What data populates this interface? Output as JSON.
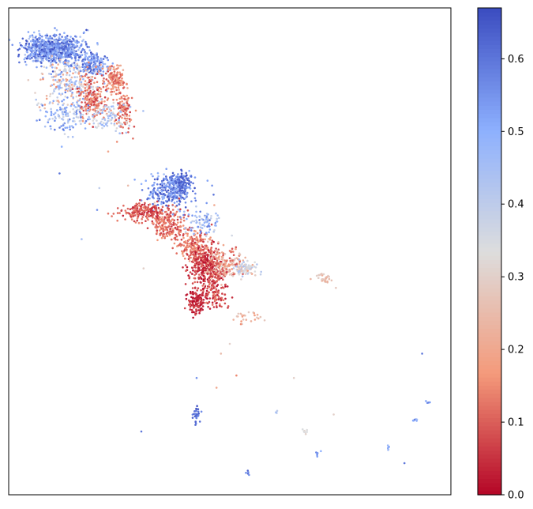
{
  "chart_data": {
    "type": "scatter",
    "title": "",
    "xlabel": "",
    "ylabel": "",
    "x_ticks_visible": false,
    "y_ticks_visible": false,
    "xlim": [
      0,
      100
    ],
    "ylim": [
      0,
      100
    ],
    "colormap": "coolwarm_r",
    "colorbar": {
      "min": 0.0,
      "max": 0.67,
      "ticks": [
        0.0,
        0.1,
        0.2,
        0.3,
        0.4,
        0.5,
        0.6
      ],
      "tick_labels": [
        "0.0",
        "0.1",
        "0.2",
        "0.3",
        "0.4",
        "0.5",
        "0.6"
      ],
      "placement": "right"
    },
    "clusters": [
      {
        "x": 10,
        "y": 91.5,
        "sx": 3.2,
        "sy": 1.4,
        "n": 900,
        "cmin": 0.42,
        "cmax": 0.67
      },
      {
        "x": 19,
        "y": 88.5,
        "sx": 1.6,
        "sy": 1.2,
        "n": 180,
        "cmin": 0.45,
        "cmax": 0.67
      },
      {
        "x": 14,
        "y": 84.5,
        "sx": 3.5,
        "sy": 2.6,
        "n": 260,
        "cmin": 0.15,
        "cmax": 0.55
      },
      {
        "x": 19,
        "y": 81.5,
        "sx": 1.6,
        "sy": 2.2,
        "n": 200,
        "cmin": 0.05,
        "cmax": 0.2
      },
      {
        "x": 24,
        "y": 85.5,
        "sx": 1.2,
        "sy": 1.3,
        "n": 140,
        "cmin": 0.08,
        "cmax": 0.22
      },
      {
        "x": 26,
        "y": 79,
        "sx": 0.9,
        "sy": 2.3,
        "n": 110,
        "cmin": 0.05,
        "cmax": 0.2
      },
      {
        "x": 13,
        "y": 78,
        "sx": 2.8,
        "sy": 1.8,
        "n": 130,
        "cmin": 0.35,
        "cmax": 0.6
      },
      {
        "x": 23,
        "y": 77.5,
        "sx": 2.8,
        "sy": 1.5,
        "n": 90,
        "cmin": 0.3,
        "cmax": 0.5
      },
      {
        "x": 36.5,
        "y": 62.5,
        "sx": 2.6,
        "sy": 1.6,
        "n": 280,
        "cmin": 0.45,
        "cmax": 0.67
      },
      {
        "x": 39,
        "y": 64.5,
        "sx": 1.2,
        "sy": 0.8,
        "n": 90,
        "cmin": 0.55,
        "cmax": 0.67
      },
      {
        "x": 31,
        "y": 58,
        "sx": 3.3,
        "sy": 1.0,
        "n": 220,
        "cmin": 0.03,
        "cmax": 0.15
      },
      {
        "x": 36,
        "y": 55,
        "sx": 2.0,
        "sy": 1.4,
        "n": 160,
        "cmin": 0.05,
        "cmax": 0.18
      },
      {
        "x": 42,
        "y": 51,
        "sx": 2.0,
        "sy": 1.6,
        "n": 220,
        "cmin": 0.05,
        "cmax": 0.2
      },
      {
        "x": 45,
        "y": 46.5,
        "sx": 1.8,
        "sy": 2.0,
        "n": 360,
        "cmin": 0.0,
        "cmax": 0.12
      },
      {
        "x": 49,
        "y": 47.5,
        "sx": 2.2,
        "sy": 1.5,
        "n": 180,
        "cmin": 0.08,
        "cmax": 0.3
      },
      {
        "x": 53.5,
        "y": 46.5,
        "sx": 1.5,
        "sy": 0.8,
        "n": 80,
        "cmin": 0.25,
        "cmax": 0.45
      },
      {
        "x": 42.5,
        "y": 40,
        "sx": 1.0,
        "sy": 1.2,
        "n": 130,
        "cmin": 0.0,
        "cmax": 0.08
      },
      {
        "x": 47,
        "y": 40.5,
        "sx": 1.2,
        "sy": 1.4,
        "n": 80,
        "cmin": 0.02,
        "cmax": 0.15
      },
      {
        "x": 44,
        "y": 56,
        "sx": 2.4,
        "sy": 1.2,
        "n": 80,
        "cmin": 0.35,
        "cmax": 0.6
      },
      {
        "x": 54,
        "y": 36.5,
        "sx": 1.5,
        "sy": 0.6,
        "n": 25,
        "cmin": 0.15,
        "cmax": 0.3
      },
      {
        "x": 71.5,
        "y": 44.5,
        "sx": 0.9,
        "sy": 0.6,
        "n": 30,
        "cmin": 0.22,
        "cmax": 0.3
      },
      {
        "x": 42.5,
        "y": 16.5,
        "sx": 0.4,
        "sy": 0.9,
        "n": 30,
        "cmin": 0.55,
        "cmax": 0.67
      },
      {
        "x": 67,
        "y": 13,
        "sx": 0.3,
        "sy": 0.3,
        "n": 8,
        "cmin": 0.3,
        "cmax": 0.36
      },
      {
        "x": 70,
        "y": 8.5,
        "sx": 0.3,
        "sy": 0.3,
        "n": 6,
        "cmin": 0.5,
        "cmax": 0.6
      },
      {
        "x": 86,
        "y": 9.5,
        "sx": 0.2,
        "sy": 0.4,
        "n": 6,
        "cmin": 0.45,
        "cmax": 0.55
      },
      {
        "x": 92,
        "y": 15.5,
        "sx": 0.3,
        "sy": 0.3,
        "n": 6,
        "cmin": 0.45,
        "cmax": 0.6
      },
      {
        "x": 54,
        "y": 4.5,
        "sx": 0.3,
        "sy": 0.3,
        "n": 5,
        "cmin": 0.55,
        "cmax": 0.67
      },
      {
        "x": 95,
        "y": 19,
        "sx": 0.3,
        "sy": 0.2,
        "n": 5,
        "cmin": 0.5,
        "cmax": 0.6
      },
      {
        "x": 60.5,
        "y": 17,
        "sx": 0.2,
        "sy": 0.2,
        "n": 4,
        "cmin": 0.4,
        "cmax": 0.5
      }
    ],
    "singletons": [
      {
        "x": 7,
        "y": 77,
        "c": 0.6
      },
      {
        "x": 12,
        "y": 71.5,
        "c": 0.5
      },
      {
        "x": 11.5,
        "y": 66,
        "c": 0.6
      },
      {
        "x": 20.5,
        "y": 63,
        "c": 0.4
      },
      {
        "x": 20,
        "y": 58.5,
        "c": 0.55
      },
      {
        "x": 16.5,
        "y": 52.5,
        "c": 0.45
      },
      {
        "x": 30.5,
        "y": 46.5,
        "c": 0.3
      },
      {
        "x": 46,
        "y": 63.5,
        "c": 0.55
      },
      {
        "x": 46.5,
        "y": 59.5,
        "c": 0.2
      },
      {
        "x": 50,
        "y": 31,
        "c": 0.3
      },
      {
        "x": 48,
        "y": 29,
        "c": 0.25
      },
      {
        "x": 51.5,
        "y": 24.5,
        "c": 0.15
      },
      {
        "x": 47,
        "y": 22,
        "c": 0.2
      },
      {
        "x": 42.5,
        "y": 24,
        "c": 0.55
      },
      {
        "x": 30,
        "y": 13,
        "c": 0.6
      },
      {
        "x": 64.5,
        "y": 24,
        "c": 0.3
      },
      {
        "x": 73.5,
        "y": 16.5,
        "c": 0.3
      },
      {
        "x": 74,
        "y": 42.5,
        "c": 0.28
      },
      {
        "x": 93.5,
        "y": 29,
        "c": 0.6
      },
      {
        "x": 89.5,
        "y": 6.5,
        "c": 0.6
      },
      {
        "x": 24.5,
        "y": 72.5,
        "c": 0.15
      },
      {
        "x": 22.5,
        "y": 70.5,
        "c": 0.2
      },
      {
        "x": 14.5,
        "y": 73.5,
        "c": 0.45
      },
      {
        "x": 33,
        "y": 60,
        "c": 0.3
      },
      {
        "x": 27,
        "y": 63.5,
        "c": 0.25
      }
    ]
  }
}
